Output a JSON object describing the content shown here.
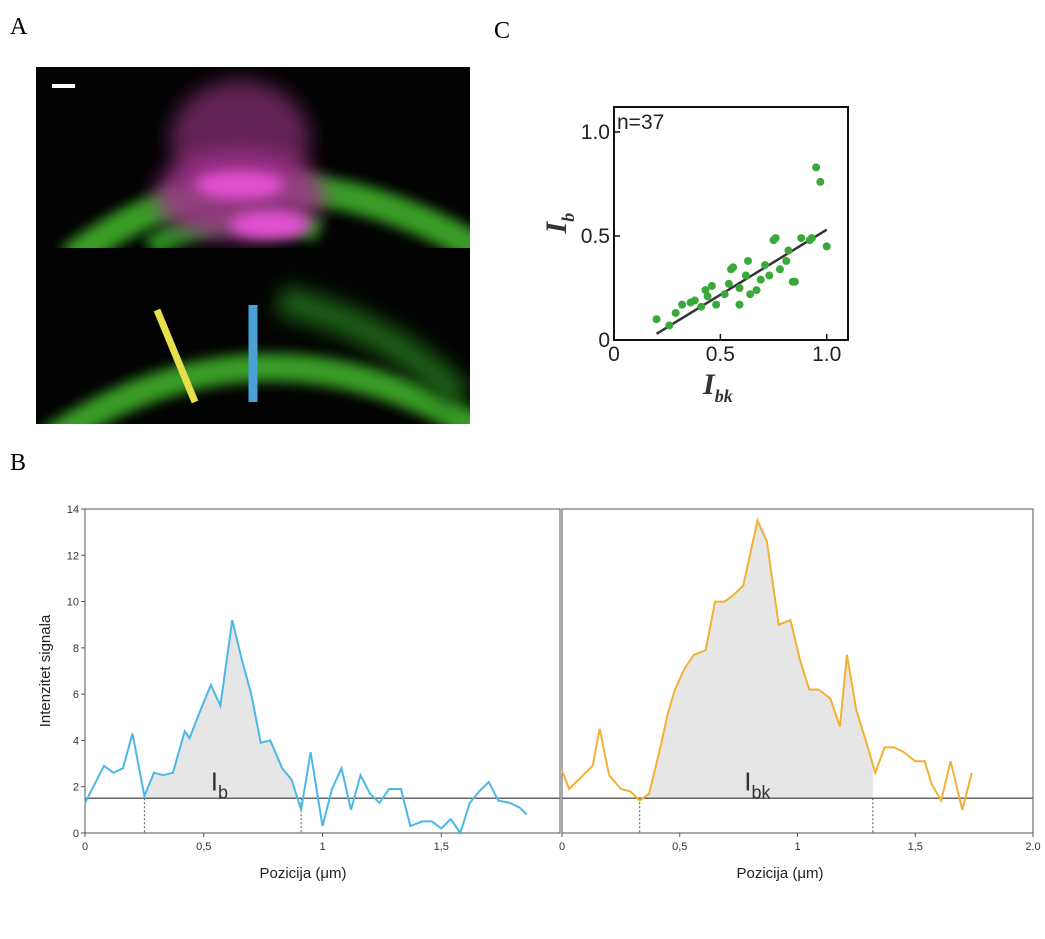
{
  "panels": [
    "A",
    "B",
    "C"
  ],
  "chart_data": [
    {
      "type": "scatter",
      "annotation": "n=37",
      "color": "#3aa83a",
      "xlabel": {
        "main": "I",
        "sub": "bk"
      },
      "ylabel": {
        "main": "I",
        "sub": "b"
      },
      "xlim": [
        0,
        1.1
      ],
      "ylim": [
        0,
        1.12
      ],
      "xticks": [
        0,
        0.5,
        {
          "value": 1,
          "label": "1.0"
        }
      ],
      "yticks": [
        0,
        0.5,
        {
          "value": 1,
          "label": "1.0"
        }
      ],
      "x": [
        0.2,
        0.26,
        0.29,
        0.32,
        0.36,
        0.38,
        0.41,
        0.44,
        0.46,
        0.48,
        0.52,
        0.54,
        0.55,
        0.56,
        0.59,
        0.62,
        0.63,
        0.64,
        0.67,
        0.69,
        0.71,
        0.73,
        0.75,
        0.76,
        0.78,
        0.81,
        0.82,
        0.84,
        0.85,
        0.88,
        0.92,
        0.93,
        0.95,
        0.97,
        1.0,
        0.43,
        0.59
      ],
      "y": [
        0.1,
        0.07,
        0.13,
        0.17,
        0.18,
        0.19,
        0.16,
        0.21,
        0.26,
        0.17,
        0.22,
        0.27,
        0.34,
        0.35,
        0.25,
        0.31,
        0.38,
        0.22,
        0.24,
        0.29,
        0.36,
        0.31,
        0.48,
        0.49,
        0.34,
        0.38,
        0.43,
        0.28,
        0.28,
        0.49,
        0.48,
        0.49,
        0.83,
        0.76,
        0.45,
        0.24,
        0.17
      ],
      "fit": {
        "x": [
          0.2,
          1.0
        ],
        "y": [
          0.03,
          0.53
        ]
      }
    },
    {
      "type": "line",
      "color": "#4bb8e6",
      "ylabel": "Intenzitet signala",
      "xlabel": "Pozicija (μm)",
      "label": {
        "main": "I",
        "sub": "b"
      },
      "baseline": 1.5,
      "markers": [
        0.25,
        0.91
      ],
      "xlim": [
        0,
        2.0
      ],
      "ylim": [
        0,
        14
      ],
      "xticks": [
        0,
        {
          "value": 0.5,
          "label": "0,5"
        },
        1,
        {
          "value": 1.5,
          "label": "1,5"
        }
      ],
      "yticks": [
        0,
        2,
        4,
        6,
        8,
        10,
        12,
        14
      ],
      "x": [
        0,
        0.03,
        0.08,
        0.12,
        0.16,
        0.2,
        0.25,
        0.29,
        0.33,
        0.37,
        0.42,
        0.44,
        0.49,
        0.53,
        0.57,
        0.62,
        0.66,
        0.7,
        0.74,
        0.78,
        0.83,
        0.87,
        0.91,
        0.95,
        1.0,
        1.04,
        1.08,
        1.12,
        1.16,
        1.2,
        1.24,
        1.28,
        1.33,
        1.37,
        1.42,
        1.46,
        1.5,
        1.54,
        1.58,
        1.62,
        1.66,
        1.7,
        1.74,
        1.79,
        1.83,
        1.86
      ],
      "values": [
        1.3,
        1.9,
        2.9,
        2.6,
        2.8,
        4.3,
        1.6,
        2.6,
        2.5,
        2.6,
        4.4,
        4.1,
        5.4,
        6.4,
        5.5,
        9.2,
        7.5,
        6.0,
        3.9,
        4.0,
        2.8,
        2.3,
        1.0,
        3.5,
        0.3,
        1.9,
        2.8,
        1.0,
        2.5,
        1.7,
        1.3,
        1.9,
        1.9,
        0.3,
        0.5,
        0.5,
        0.2,
        0.6,
        0.0,
        1.3,
        1.8,
        2.2,
        1.4,
        1.3,
        1.1,
        0.8
      ]
    },
    {
      "type": "line",
      "color": "#f2b134",
      "xlabel": "Pozicija (μm)",
      "label": {
        "main": "I",
        "sub": "bk"
      },
      "baseline": 1.5,
      "markers": [
        0.33,
        1.32
      ],
      "xlim": [
        0,
        2.0
      ],
      "ylim": [
        0,
        14
      ],
      "xticks": [
        0,
        {
          "value": 0.5,
          "label": "0,5"
        },
        1,
        {
          "value": 1.5,
          "label": "1,5"
        },
        {
          "value": 2,
          "label": "2.0"
        }
      ],
      "x": [
        0,
        0.03,
        0.08,
        0.13,
        0.16,
        0.2,
        0.25,
        0.29,
        0.33,
        0.37,
        0.42,
        0.45,
        0.48,
        0.52,
        0.56,
        0.61,
        0.65,
        0.69,
        0.73,
        0.77,
        0.83,
        0.87,
        0.92,
        0.97,
        1.01,
        1.05,
        1.09,
        1.14,
        1.18,
        1.21,
        1.25,
        1.29,
        1.33,
        1.37,
        1.41,
        1.45,
        1.5,
        1.54,
        1.57,
        1.61,
        1.65,
        1.7,
        1.74
      ],
      "values": [
        2.7,
        1.9,
        2.4,
        2.9,
        4.5,
        2.5,
        1.9,
        1.8,
        1.4,
        1.7,
        3.8,
        5.2,
        6.2,
        7.1,
        7.7,
        7.9,
        10.0,
        10.0,
        10.3,
        10.7,
        13.5,
        12.6,
        9.0,
        9.2,
        7.5,
        6.2,
        6.2,
        5.8,
        4.6,
        7.7,
        5.3,
        4.0,
        2.6,
        3.7,
        3.7,
        3.5,
        3.1,
        3.1,
        2.1,
        1.4,
        3.1,
        1.0,
        2.6
      ]
    }
  ]
}
